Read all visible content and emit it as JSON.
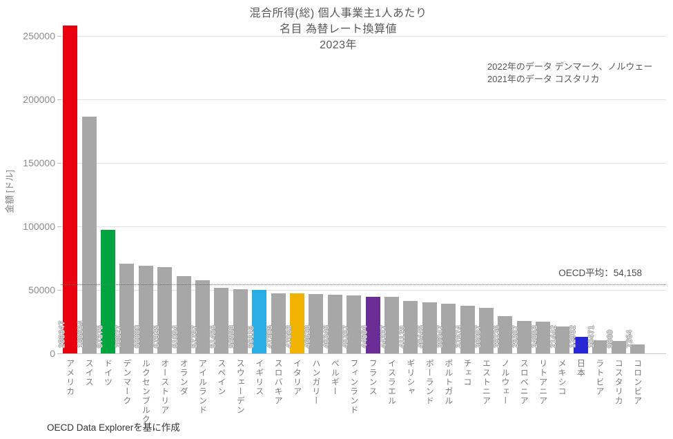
{
  "title": {
    "line1": "混合所得(総) 個人事業主1人あたり",
    "line2": "名目 為替レート換算値",
    "line3": "2023年"
  },
  "annotation": {
    "line1": "2022年のデータ デンマーク、ノルウェー",
    "line2": "2021年のデータ コスタリカ"
  },
  "footer": "OECD Data Explorerを基に作成",
  "colors": {
    "default_bar": "#a7a7a7",
    "highlight_red": "#e8000f",
    "highlight_green": "#00a53f",
    "highlight_cyan": "#29ade4",
    "highlight_yellow": "#f2b200",
    "highlight_purple": "#6a2d96",
    "highlight_blue": "#2727d3",
    "grid": "#e2e2e2",
    "text_gray": "#7a7a7a"
  },
  "chart_data": {
    "type": "bar",
    "title": "混合所得(総) 個人事業主1人あたり 名目 為替レート換算値 2023年",
    "xlabel": "",
    "ylabel": "金額 [ドル]",
    "ylim": [
      0,
      250000
    ],
    "yticks": [
      0,
      50000,
      100000,
      150000,
      200000,
      250000
    ],
    "grid": true,
    "legend": false,
    "average_value": 54158,
    "average_label": "OECD平均：54,158",
    "categories": [
      "アメリカ",
      "スイス",
      "ドイツ",
      "デンマーク",
      "ルクセンブルク",
      "オーストリア",
      "オランダ",
      "アイルランド",
      "スペイン",
      "スウェーデン",
      "イギリス",
      "スロバキア",
      "イタリア",
      "ハンガリー",
      "ベルギー",
      "フィンランド",
      "フランス",
      "イスラエル",
      "ギリシャ",
      "ポーランド",
      "ポルトガル",
      "チェコ",
      "エストニア",
      "ノルウェー",
      "スロベニア",
      "リトアニア",
      "メキシコ",
      "日本",
      "ラトビア",
      "コスタリカ",
      "コロンビア"
    ],
    "values": [
      258347,
      186634,
      97375,
      70827,
      68880,
      67925,
      61094,
      57797,
      51456,
      50558,
      50115,
      47305,
      47063,
      46628,
      46346,
      45787,
      44594,
      44337,
      41129,
      40445,
      39047,
      37674,
      36097,
      29226,
      25387,
      24853,
      21442,
      12932,
      10471,
      9860,
      7264
    ],
    "bar_colors": [
      "#e8000f",
      "#a7a7a7",
      "#00a53f",
      "#a7a7a7",
      "#a7a7a7",
      "#a7a7a7",
      "#a7a7a7",
      "#a7a7a7",
      "#a7a7a7",
      "#a7a7a7",
      "#29ade4",
      "#a7a7a7",
      "#f2b200",
      "#a7a7a7",
      "#a7a7a7",
      "#a7a7a7",
      "#6a2d96",
      "#a7a7a7",
      "#a7a7a7",
      "#a7a7a7",
      "#a7a7a7",
      "#a7a7a7",
      "#a7a7a7",
      "#a7a7a7",
      "#a7a7a7",
      "#a7a7a7",
      "#a7a7a7",
      "#2727d3",
      "#a7a7a7",
      "#a7a7a7",
      "#a7a7a7"
    ]
  }
}
